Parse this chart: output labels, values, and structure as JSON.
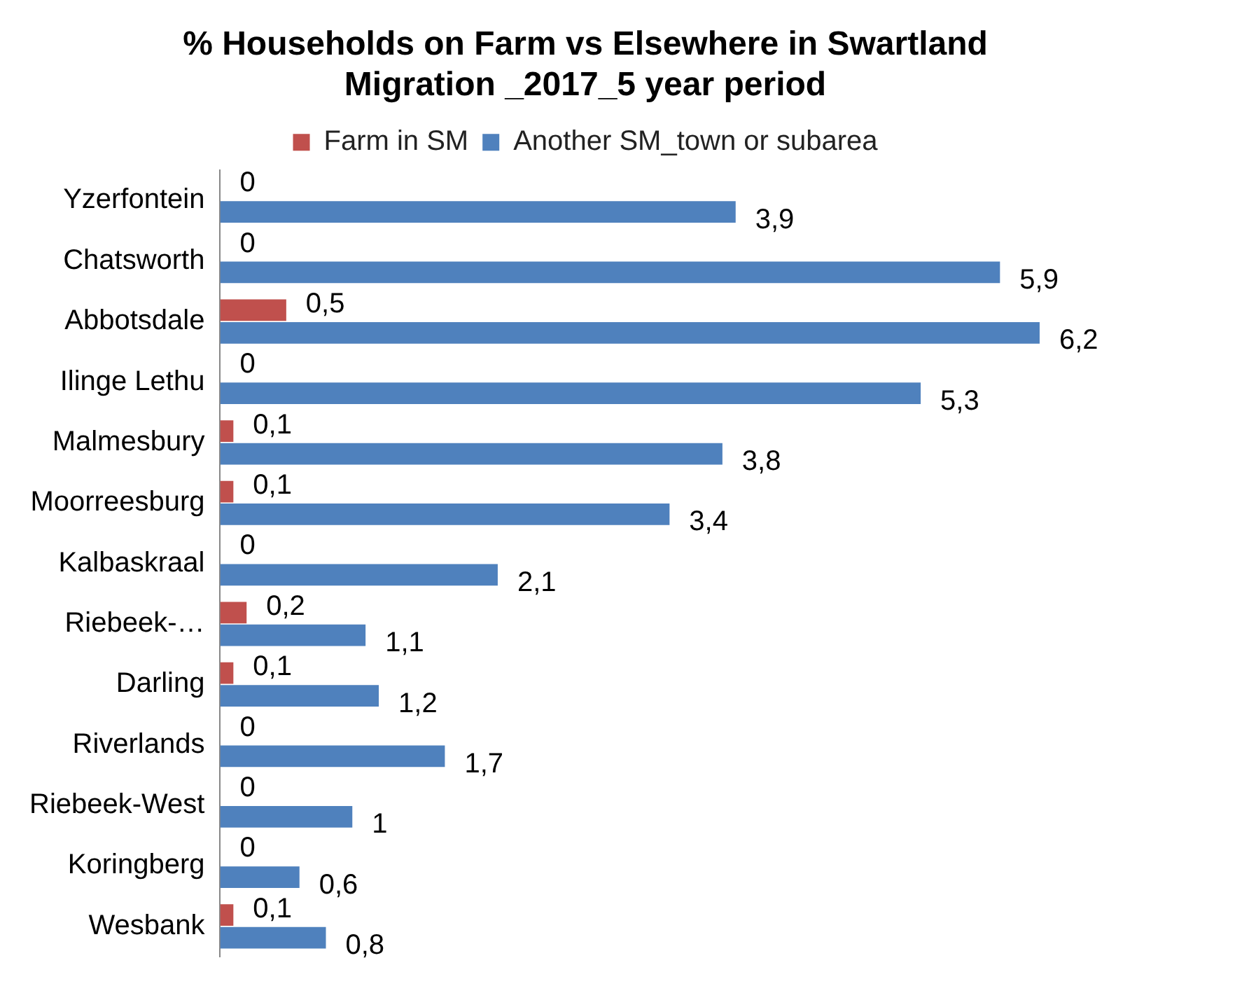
{
  "chart_data": {
    "type": "bar",
    "orientation": "horizontal",
    "title": "% Households on Farm vs Elsewhere in Swartland Migration _2017_5 year period",
    "categories": [
      "Yzerfontein",
      "Chatsworth",
      "Abbotsdale",
      "Ilinge Lethu",
      "Malmesbury",
      "Moorreesburg",
      "Kalbaskraal",
      "Riebeek-…",
      "Darling",
      "Riverlands",
      "Riebeek-West",
      "Koringberg",
      "Wesbank"
    ],
    "series": [
      {
        "name": "Farm in SM",
        "color": "#c0504d",
        "values": [
          0,
          0,
          0.5,
          0,
          0.1,
          0.1,
          0,
          0.2,
          0.1,
          0,
          0,
          0,
          0.1
        ],
        "value_labels": [
          "0",
          "0",
          "0,5",
          "0",
          "0,1",
          "0,1",
          "0",
          "0,2",
          "0,1",
          "0",
          "0",
          "0",
          "0,1"
        ]
      },
      {
        "name": "Another SM_town or subarea",
        "color": "#4f81bd",
        "values": [
          3.9,
          5.9,
          6.2,
          5.3,
          3.8,
          3.4,
          2.1,
          1.1,
          1.2,
          1.7,
          1,
          0.6,
          0.8
        ],
        "value_labels": [
          "3,9",
          "5,9",
          "6,2",
          "5,3",
          "3,8",
          "3,4",
          "2,1",
          "1,1",
          "1,2",
          "1,7",
          "1",
          "0,6",
          "0,8"
        ]
      }
    ],
    "legend": "top",
    "grid": false
  }
}
